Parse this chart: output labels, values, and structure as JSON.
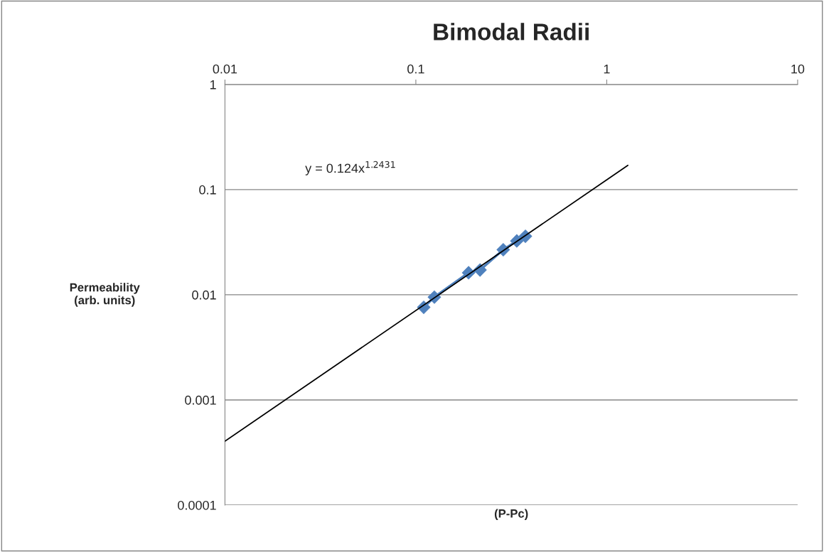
{
  "chart_data": {
    "type": "line",
    "title": "Bimodal Radii",
    "xlabel": "(P-Pc)",
    "ylabel": "Permeability\n(arb. units)",
    "log": "xy",
    "xlim": [
      0.01,
      10
    ],
    "ylim": [
      0.0001,
      1
    ],
    "xticks": [
      {
        "value": 0.01,
        "label": "0.01"
      },
      {
        "value": 0.1,
        "label": "0.1"
      },
      {
        "value": 1,
        "label": "1"
      },
      {
        "value": 10,
        "label": "10"
      }
    ],
    "yticks": [
      {
        "value": 0.0001,
        "label": "0.0001"
      },
      {
        "value": 0.001,
        "label": "0.001"
      },
      {
        "value": 0.01,
        "label": "0.01"
      },
      {
        "value": 0.1,
        "label": "0.1"
      },
      {
        "value": 1,
        "label": "1"
      }
    ],
    "grid": "y",
    "marker": "diamond",
    "annotations": [
      "y = 0.124x$^{1.2431}$"
    ],
    "series": [
      {
        "color": "#4f81bd",
        "x": [
          0.11,
          0.125,
          0.189,
          0.217,
          0.287,
          0.338,
          0.375
        ],
        "values": [
          0.0076,
          0.0095,
          0.0162,
          0.0172,
          0.0268,
          0.0325,
          0.036
        ]
      },
      {
        "type": "line",
        "color": "#000000",
        "marker": "none",
        "x": [
          0.01,
          1.29
        ],
        "values": [
          0.000405,
          0.17
        ]
      }
    ]
  }
}
